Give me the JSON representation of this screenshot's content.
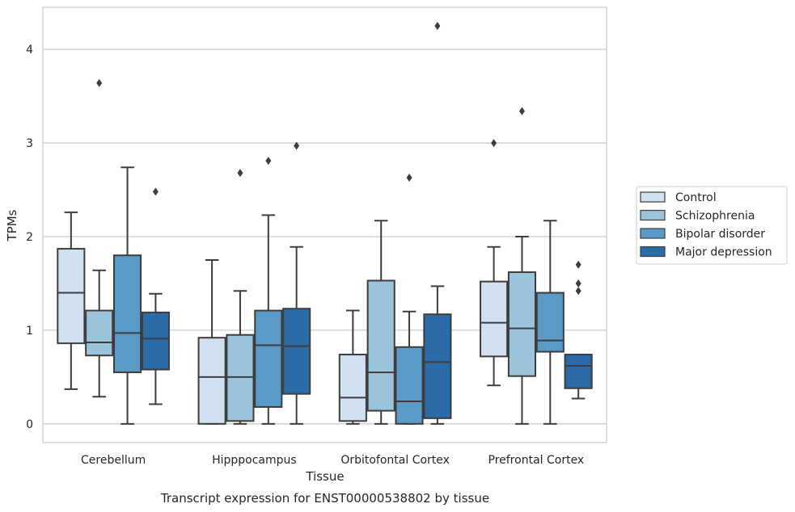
{
  "chart_data": {
    "type": "box",
    "caption": "Transcript expression for ENST00000538802 by tissue",
    "xlabel": "Tissue",
    "ylabel": "TPMs",
    "ylim": [
      -0.2,
      4.45
    ],
    "yticks": [
      0,
      1,
      2,
      3,
      4
    ],
    "grid": "horizontal",
    "legend_position": "right",
    "categories": [
      "Cerebellum",
      "Hipppocampus",
      "Orbitofontal Cortex",
      "Prefrontal Cortex"
    ],
    "series": [
      {
        "name": "Control",
        "color": "#d1e1f1",
        "boxes": [
          {
            "whislo": 0.37,
            "q1": 0.86,
            "med": 1.4,
            "q3": 1.87,
            "whishi": 2.26,
            "fliers": []
          },
          {
            "whislo": 0.0,
            "q1": 0.0,
            "med": 0.5,
            "q3": 0.92,
            "whishi": 1.75,
            "fliers": []
          },
          {
            "whislo": 0.0,
            "q1": 0.03,
            "med": 0.28,
            "q3": 0.74,
            "whishi": 1.21,
            "fliers": []
          },
          {
            "whislo": 0.41,
            "q1": 0.72,
            "med": 1.08,
            "q3": 1.52,
            "whishi": 1.89,
            "fliers": [
              3.0
            ]
          }
        ]
      },
      {
        "name": "Schizophrenia",
        "color": "#9cc3dc",
        "boxes": [
          {
            "whislo": 0.29,
            "q1": 0.73,
            "med": 0.87,
            "q3": 1.21,
            "whishi": 1.64,
            "fliers": [
              3.64
            ]
          },
          {
            "whislo": 0.0,
            "q1": 0.03,
            "med": 0.5,
            "q3": 0.95,
            "whishi": 1.42,
            "fliers": [
              2.68
            ]
          },
          {
            "whislo": 0.0,
            "q1": 0.14,
            "med": 0.55,
            "q3": 1.53,
            "whishi": 2.17,
            "fliers": []
          },
          {
            "whislo": 0.0,
            "q1": 0.51,
            "med": 1.02,
            "q3": 1.62,
            "whishi": 2.0,
            "fliers": [
              3.34
            ]
          }
        ]
      },
      {
        "name": "Bipolar disorder",
        "color": "#5b9ac6",
        "boxes": [
          {
            "whislo": 0.0,
            "q1": 0.55,
            "med": 0.97,
            "q3": 1.8,
            "whishi": 2.74,
            "fliers": []
          },
          {
            "whislo": 0.0,
            "q1": 0.18,
            "med": 0.84,
            "q3": 1.21,
            "whishi": 2.23,
            "fliers": [
              2.81
            ]
          },
          {
            "whislo": 0.0,
            "q1": 0.0,
            "med": 0.24,
            "q3": 0.82,
            "whishi": 1.2,
            "fliers": [
              2.63
            ]
          },
          {
            "whislo": 0.0,
            "q1": 0.77,
            "med": 0.89,
            "q3": 1.4,
            "whishi": 2.17,
            "fliers": []
          }
        ]
      },
      {
        "name": "Major depression",
        "color": "#2a6ba8",
        "boxes": [
          {
            "whislo": 0.21,
            "q1": 0.58,
            "med": 0.91,
            "q3": 1.19,
            "whishi": 1.39,
            "fliers": [
              2.48
            ]
          },
          {
            "whislo": 0.0,
            "q1": 0.32,
            "med": 0.83,
            "q3": 1.23,
            "whishi": 1.89,
            "fliers": [
              2.97
            ]
          },
          {
            "whislo": 0.0,
            "q1": 0.06,
            "med": 0.66,
            "q3": 1.17,
            "whishi": 1.47,
            "fliers": [
              4.25
            ]
          },
          {
            "whislo": 0.27,
            "q1": 0.38,
            "med": 0.62,
            "q3": 0.74,
            "whishi": 0.74,
            "fliers": [
              1.42,
              1.5,
              1.7
            ]
          }
        ]
      }
    ]
  }
}
